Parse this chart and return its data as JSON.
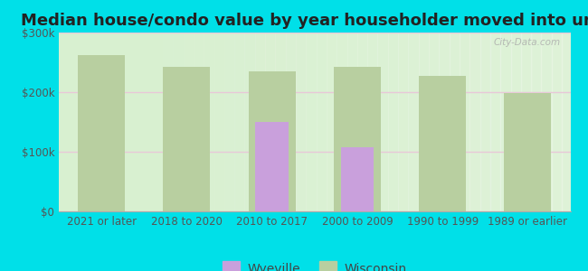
{
  "title": "Median house/condo value by year householder moved into unit",
  "categories": [
    "2021 or later",
    "2018 to 2020",
    "2010 to 2017",
    "2000 to 2009",
    "1990 to 1999",
    "1989 or earlier"
  ],
  "wyeville_values": [
    null,
    null,
    150000,
    107000,
    null,
    null
  ],
  "wisconsin_values": [
    262000,
    242000,
    235000,
    243000,
    228000,
    198000
  ],
  "wyeville_color": "#c9a0dc",
  "wisconsin_color": "#b8cfa0",
  "background_color_left": "#d8f0d0",
  "background_color_right": "#f0f8f0",
  "outer_background": "#00e0e8",
  "ylim": [
    0,
    300000
  ],
  "yticks": [
    0,
    100000,
    200000,
    300000
  ],
  "ytick_labels": [
    "$0",
    "$100k",
    "$200k",
    "$300k"
  ],
  "bar_width": 0.55,
  "grid_color": "#e8c8d8",
  "watermark": "City-Data.com",
  "legend_wyeville": "Wyeville",
  "legend_wisconsin": "Wisconsin",
  "title_fontsize": 13,
  "tick_fontsize": 8.5,
  "legend_fontsize": 10
}
